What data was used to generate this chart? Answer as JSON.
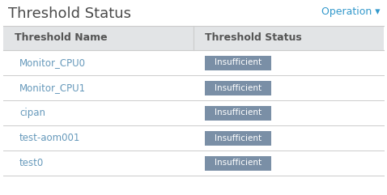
{
  "title": "Threshold Status",
  "operation_label": "Operation ▾",
  "header": [
    "Threshold Name",
    "Threshold Status"
  ],
  "rows": [
    [
      "Monitor_CPU0",
      "Insufficient"
    ],
    [
      "Monitor_CPU1",
      "Insufficient"
    ],
    [
      "cipan",
      "Insufficient"
    ],
    [
      "test-aom001",
      "Insufficient"
    ],
    [
      "test0",
      "Insufficient"
    ]
  ],
  "background_color": "#ffffff",
  "header_bg_color": "#e2e4e6",
  "row_divider_color": "#cccccc",
  "title_color": "#4a4a4a",
  "operation_color": "#3399cc",
  "header_text_color": "#555555",
  "name_link_color": "#6699bb",
  "badge_bg_color": "#7a8fa6",
  "badge_text_color": "#ffffff",
  "fig_width": 4.78,
  "fig_height": 2.41,
  "dpi": 100
}
